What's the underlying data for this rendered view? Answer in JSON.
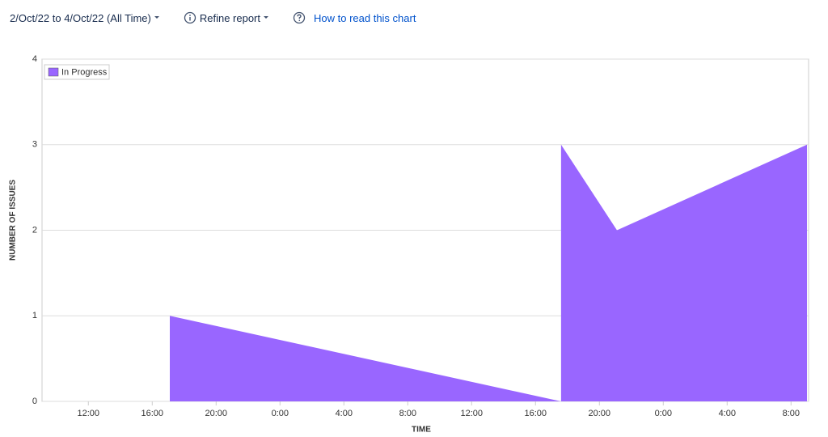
{
  "toolbar": {
    "date_range": "2/Oct/22 to 4/Oct/22 (All Time)",
    "refine": "Refine report",
    "help": "How to read this chart"
  },
  "chart_data": {
    "type": "area",
    "x_label": "TIME",
    "y_label": "NUMBER OF ISSUES",
    "x": [
      9.1,
      17.1,
      17.1,
      41.6,
      41.6,
      45.1,
      57.0,
      57.0
    ],
    "series": [
      {
        "name": "In Progress",
        "color": "#9966ff",
        "values": [
          0,
          0,
          1,
          0,
          3,
          2,
          3,
          2
        ]
      }
    ],
    "xlim": [
      9.1,
      57.1
    ],
    "ylim": [
      0,
      4
    ],
    "xticks": [
      {
        "value": 12,
        "label": "12:00"
      },
      {
        "value": 16,
        "label": "16:00"
      },
      {
        "value": 20,
        "label": "20:00"
      },
      {
        "value": 24,
        "label": "0:00"
      },
      {
        "value": 28,
        "label": "4:00"
      },
      {
        "value": 32,
        "label": "8:00"
      },
      {
        "value": 36,
        "label": "12:00"
      },
      {
        "value": 40,
        "label": "16:00"
      },
      {
        "value": 44,
        "label": "20:00"
      },
      {
        "value": 48,
        "label": "0:00"
      },
      {
        "value": 52,
        "label": "4:00"
      },
      {
        "value": 56,
        "label": "8:00"
      }
    ],
    "yticks": [
      0,
      1,
      2,
      3,
      4
    ],
    "grid": true,
    "legend": "upper left"
  }
}
